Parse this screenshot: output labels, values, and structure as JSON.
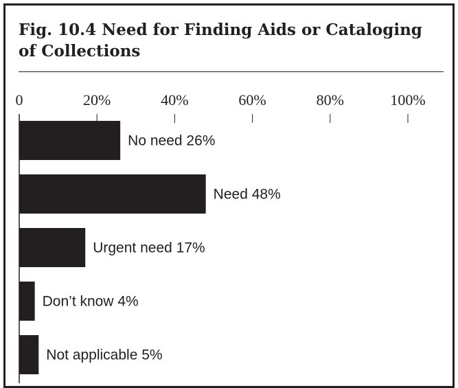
{
  "chart_data": {
    "type": "bar",
    "orientation": "horizontal",
    "title": "Fig. 10.4 Need for Finding Aids or Cataloging of Collections",
    "xlim": [
      0,
      100
    ],
    "ticks": [
      {
        "value": 0,
        "label": "0"
      },
      {
        "value": 20,
        "label": "20%"
      },
      {
        "value": 40,
        "label": "40%"
      },
      {
        "value": 60,
        "label": "60%"
      },
      {
        "value": 80,
        "label": "80%"
      },
      {
        "value": 100,
        "label": "100%"
      }
    ],
    "categories": [
      "No need",
      "Need",
      "Urgent need",
      "Don’t know",
      "Not applicable"
    ],
    "values": [
      26,
      48,
      17,
      4,
      5
    ],
    "bar_labels": [
      "No need 26%",
      "Need 48%",
      "Urgent need 17%",
      "Don’t know 4%",
      "Not applicable 5%"
    ],
    "bar_color": "#231f20"
  }
}
